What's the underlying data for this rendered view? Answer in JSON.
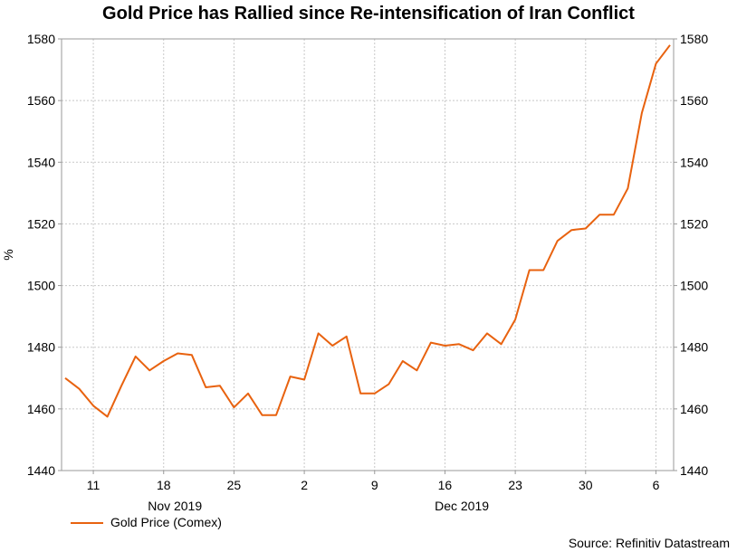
{
  "chart_data": {
    "type": "line",
    "title": "Gold Price has Rallied since Re-intensification of Iran Conflict",
    "ylabel": "%",
    "xlabel": "",
    "ylim": [
      1440,
      1580
    ],
    "y_ticks": [
      1440,
      1460,
      1480,
      1500,
      1520,
      1540,
      1560,
      1580
    ],
    "x_tick_labels": [
      "11",
      "18",
      "25",
      "2",
      "9",
      "16",
      "23",
      "30",
      "6"
    ],
    "x_tick_index": [
      2,
      7,
      12,
      17,
      22,
      27,
      32,
      37,
      42
    ],
    "month_labels": [
      "Nov 2019",
      "Dec 2019"
    ],
    "month_label_index": [
      7.8,
      28.2
    ],
    "grid": true,
    "legend_position": "bottom-left",
    "series": [
      {
        "name": "Gold Price (Comex)",
        "color": "#e8620f",
        "values": [
          1470,
          1466.5,
          1461,
          1457.5,
          1467.5,
          1477,
          1472.5,
          1475.5,
          1478,
          1477.5,
          1467,
          1467.5,
          1460.5,
          1465,
          1458,
          1458,
          1470.5,
          1469.5,
          1484.5,
          1480.5,
          1483.5,
          1465,
          1465,
          1468,
          1475.5,
          1472.5,
          1481.5,
          1480.5,
          1481,
          1479,
          1484.5,
          1481,
          1489,
          1505,
          1505,
          1514.5,
          1518,
          1518.5,
          1523,
          1523,
          1531.5,
          1556,
          1572,
          1578
        ]
      }
    ]
  },
  "source": "Source: Refinitiv Datastream"
}
